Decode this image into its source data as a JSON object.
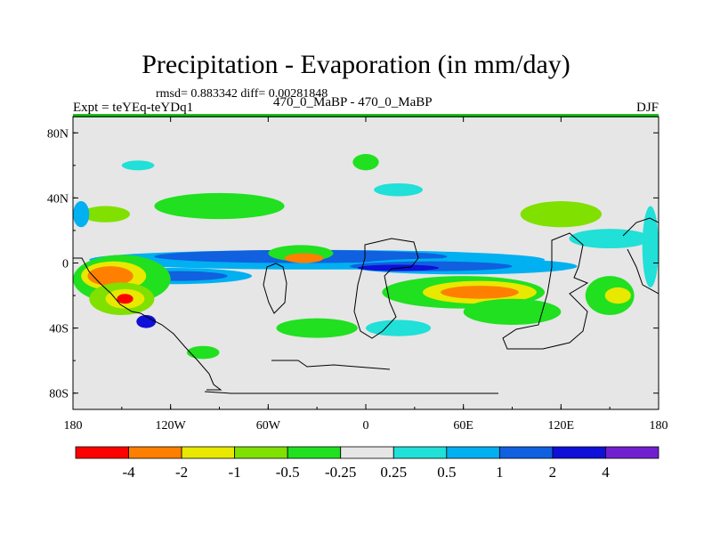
{
  "header": {
    "title": "Precipitation - Evaporation (in mm/day)",
    "stats": "rmsd= 0.883342 diff= 0.00281848",
    "expt": "Expt = teYEq-teYDq1",
    "center_label": "470_0_MaBP - 470_0_MaBP",
    "season": "DJF"
  },
  "colors": {
    "-4": "#ff0000",
    "-2": "#ff8000",
    "-1": "#e8e800",
    "-0.5": "#80e000",
    "-0.25": "#20e020",
    "0": "#e6e6e6",
    "0.25": "#20e0d8",
    "0.5": "#00b0f0",
    "1": "#1060e0",
    "2": "#1010d8",
    "4": "#7020d0",
    "land": "#000000",
    "border": "#20c020"
  },
  "chart_data": {
    "type": "heatmap",
    "title": "Precipitation - Evaporation (in mm/day)",
    "x_ticks": [
      "180",
      "120W",
      "60W",
      "0",
      "60E",
      "120E",
      "180"
    ],
    "x_tick_values": [
      -180,
      -120,
      -60,
      0,
      60,
      120,
      180
    ],
    "y_ticks": [
      "80N",
      "40N",
      "0",
      "40S",
      "80S"
    ],
    "y_tick_values": [
      80,
      40,
      0,
      -40,
      -80
    ],
    "xlim": [
      -180,
      180
    ],
    "ylim": [
      -90,
      90
    ],
    "colorbar": {
      "labels": [
        "-4",
        "-2",
        "-1",
        "-0.5",
        "-0.25",
        "0.25",
        "0.5",
        "1",
        "2",
        "4"
      ],
      "colors": [
        "#ff0000",
        "#ff8000",
        "#e8e800",
        "#80e000",
        "#20e020",
        "#e6e6e6",
        "#20e0d8",
        "#00b0f0",
        "#1060e0",
        "#1010d8",
        "#7020d0"
      ]
    },
    "features": [
      {
        "level": "0.5",
        "lon": -30,
        "lat": 2,
        "rx": 140,
        "ry": 6
      },
      {
        "level": "1",
        "lon": -40,
        "lat": 4,
        "rx": 90,
        "ry": 4
      },
      {
        "level": "0.5",
        "lon": 60,
        "lat": -2,
        "rx": 70,
        "ry": 5
      },
      {
        "level": "1",
        "lon": 40,
        "lat": -2,
        "rx": 50,
        "ry": 3
      },
      {
        "level": "2",
        "lon": 20,
        "lat": -3,
        "rx": 25,
        "ry": 2
      },
      {
        "level": "0.5",
        "lon": -120,
        "lat": -8,
        "rx": 50,
        "ry": 5
      },
      {
        "level": "1",
        "lon": -115,
        "lat": -8,
        "rx": 30,
        "ry": 3
      },
      {
        "level": "-0.25",
        "lon": -150,
        "lat": -10,
        "rx": 30,
        "ry": 15
      },
      {
        "level": "-1",
        "lon": -155,
        "lat": -8,
        "rx": 20,
        "ry": 9
      },
      {
        "level": "-2",
        "lon": -157,
        "lat": -8,
        "rx": 14,
        "ry": 6
      },
      {
        "level": "-0.5",
        "lon": -150,
        "lat": -22,
        "rx": 20,
        "ry": 10
      },
      {
        "level": "-1",
        "lon": -148,
        "lat": -22,
        "rx": 12,
        "ry": 6
      },
      {
        "level": "-4",
        "lon": -148,
        "lat": -22,
        "rx": 5,
        "ry": 3
      },
      {
        "level": "2",
        "lon": -135,
        "lat": -36,
        "rx": 6,
        "ry": 4
      },
      {
        "level": "-0.25",
        "lon": -40,
        "lat": 6,
        "rx": 20,
        "ry": 5
      },
      {
        "level": "-2",
        "lon": -38,
        "lat": 3,
        "rx": 12,
        "ry": 3
      },
      {
        "level": "-0.25",
        "lon": 60,
        "lat": -18,
        "rx": 50,
        "ry": 10
      },
      {
        "level": "-1",
        "lon": 70,
        "lat": -18,
        "rx": 35,
        "ry": 7
      },
      {
        "level": "-2",
        "lon": 70,
        "lat": -18,
        "rx": 24,
        "ry": 4
      },
      {
        "level": "-0.25",
        "lon": -90,
        "lat": 35,
        "rx": 40,
        "ry": 8
      },
      {
        "level": "-0.5",
        "lon": 120,
        "lat": 30,
        "rx": 25,
        "ry": 8
      },
      {
        "level": "0.25",
        "lon": 150,
        "lat": 15,
        "rx": 25,
        "ry": 6
      },
      {
        "level": "-0.25",
        "lon": 90,
        "lat": -30,
        "rx": 30,
        "ry": 8
      },
      {
        "level": "0.25",
        "lon": -140,
        "lat": 60,
        "rx": 10,
        "ry": 3
      },
      {
        "level": "-0.25",
        "lon": 0,
        "lat": 62,
        "rx": 8,
        "ry": 5
      },
      {
        "level": "0.25",
        "lon": 20,
        "lat": 45,
        "rx": 15,
        "ry": 4
      },
      {
        "level": "-0.5",
        "lon": -160,
        "lat": 30,
        "rx": 15,
        "ry": 5
      },
      {
        "level": "0.5",
        "lon": -175,
        "lat": 30,
        "rx": 5,
        "ry": 8
      },
      {
        "level": "-0.25",
        "lon": -30,
        "lat": -40,
        "rx": 25,
        "ry": 6
      },
      {
        "level": "0.25",
        "lon": 20,
        "lat": -40,
        "rx": 20,
        "ry": 5
      },
      {
        "level": "-0.25",
        "lon": 150,
        "lat": -20,
        "rx": 15,
        "ry": 12
      },
      {
        "level": "-1",
        "lon": 155,
        "lat": -20,
        "rx": 8,
        "ry": 5
      },
      {
        "level": "0.25",
        "lon": 175,
        "lat": 10,
        "rx": 5,
        "ry": 25
      },
      {
        "level": "-0.25",
        "lon": -100,
        "lat": -55,
        "rx": 10,
        "ry": 4
      }
    ]
  }
}
